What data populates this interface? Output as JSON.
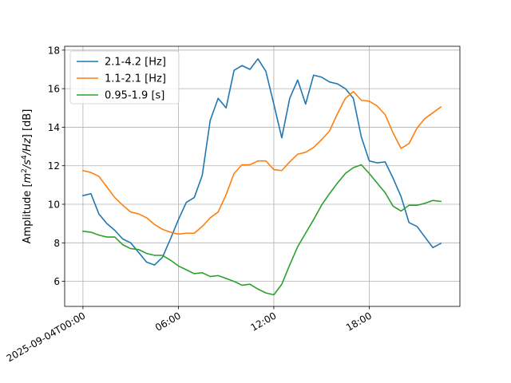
{
  "chart_data": {
    "type": "line",
    "title": "",
    "xlabel": "",
    "ylabel": "Amplitude [m²/s⁴/Hz] [dB]",
    "ylabel_parts": {
      "prefix": "Amplitude [",
      "m": "m",
      "sup1": "2",
      "mid": "/s",
      "sup2": "4",
      "hz": "/Hz",
      "suffix": "] [dB]"
    },
    "x_unit": "hours since 2025-09-04T00:00",
    "xlim": [
      -1.15,
      23.7
    ],
    "ylim": [
      4.7,
      18.2
    ],
    "grid": true,
    "legend_position": "top-left",
    "x_ticks": [
      {
        "value": 0,
        "label": "2025-09-04T00:00"
      },
      {
        "value": 6,
        "label": "06:00"
      },
      {
        "value": 12,
        "label": "12:00"
      },
      {
        "value": 18,
        "label": "18:00"
      }
    ],
    "y_ticks": [
      6,
      8,
      10,
      12,
      14,
      16,
      18
    ],
    "series": [
      {
        "name": "2.1-4.2 [Hz]",
        "color": "#1f77b4",
        "x": [
          0,
          0.5,
          1,
          1.5,
          2,
          2.5,
          3,
          3.5,
          4,
          4.5,
          5,
          5.5,
          6,
          6.5,
          7,
          7.5,
          8,
          8.5,
          9,
          9.5,
          10,
          10.5,
          11,
          11.5,
          12,
          12.5,
          13,
          13.5,
          14,
          14.5,
          15,
          15.5,
          16,
          16.5,
          17,
          17.5,
          18,
          18.5,
          19,
          19.5,
          20,
          20.5,
          21,
          21.5,
          22,
          22.5
        ],
        "values": [
          10.45,
          10.55,
          9.5,
          9.0,
          8.65,
          8.2,
          8.0,
          7.5,
          7.0,
          6.85,
          7.25,
          8.2,
          9.2,
          10.1,
          10.35,
          11.5,
          14.35,
          15.5,
          15.0,
          16.95,
          17.2,
          17.0,
          17.55,
          16.9,
          15.2,
          13.45,
          15.5,
          16.45,
          15.2,
          16.7,
          16.6,
          16.35,
          16.25,
          16.0,
          15.5,
          13.5,
          12.25,
          12.15,
          12.2,
          11.35,
          10.4,
          9.05,
          8.85,
          8.3,
          7.75,
          7.97
        ]
      },
      {
        "name": "1.1-2.1 [Hz]",
        "color": "#ff7f0e",
        "x": [
          0,
          0.5,
          1,
          1.5,
          2,
          2.5,
          3,
          3.5,
          4,
          4.5,
          5,
          5.5,
          6,
          6.5,
          7,
          7.5,
          8,
          8.5,
          9,
          9.5,
          10,
          10.5,
          11,
          11.5,
          12,
          12.5,
          13,
          13.5,
          14,
          14.5,
          15,
          15.5,
          16,
          16.5,
          17,
          17.5,
          18,
          18.5,
          19,
          19.5,
          20,
          20.5,
          21,
          21.5,
          22,
          22.5
        ],
        "values": [
          11.75,
          11.65,
          11.45,
          10.9,
          10.35,
          9.95,
          9.6,
          9.5,
          9.3,
          8.95,
          8.7,
          8.55,
          8.45,
          8.5,
          8.5,
          8.85,
          9.3,
          9.6,
          10.5,
          11.6,
          12.05,
          12.05,
          12.25,
          12.25,
          11.8,
          11.75,
          12.2,
          12.6,
          12.7,
          12.95,
          13.35,
          13.8,
          14.7,
          15.5,
          15.85,
          15.4,
          15.35,
          15.1,
          14.65,
          13.7,
          12.9,
          13.15,
          13.95,
          14.45,
          14.75,
          15.05
        ]
      },
      {
        "name": "0.95-1.9 [s]",
        "color": "#2ca02c",
        "x": [
          0,
          0.5,
          1,
          1.5,
          2,
          2.5,
          3,
          3.5,
          4,
          4.5,
          5,
          5.5,
          6,
          6.5,
          7,
          7.5,
          8,
          8.5,
          9,
          9.5,
          10,
          10.5,
          11,
          11.5,
          12,
          12.5,
          13,
          13.5,
          14,
          14.5,
          15,
          15.5,
          16,
          16.5,
          17,
          17.5,
          18,
          18.5,
          19,
          19.5,
          20,
          20.5,
          21,
          21.5,
          22,
          22.5
        ],
        "values": [
          8.6,
          8.55,
          8.4,
          8.3,
          8.3,
          7.9,
          7.7,
          7.65,
          7.45,
          7.35,
          7.35,
          7.1,
          6.8,
          6.6,
          6.4,
          6.45,
          6.25,
          6.3,
          6.15,
          6.0,
          5.8,
          5.85,
          5.6,
          5.4,
          5.3,
          5.85,
          6.85,
          7.8,
          8.5,
          9.2,
          9.95,
          10.55,
          11.1,
          11.6,
          11.9,
          12.05,
          11.6,
          11.1,
          10.6,
          9.9,
          9.65,
          9.95,
          9.95,
          10.05,
          10.2,
          10.15
        ]
      }
    ]
  }
}
